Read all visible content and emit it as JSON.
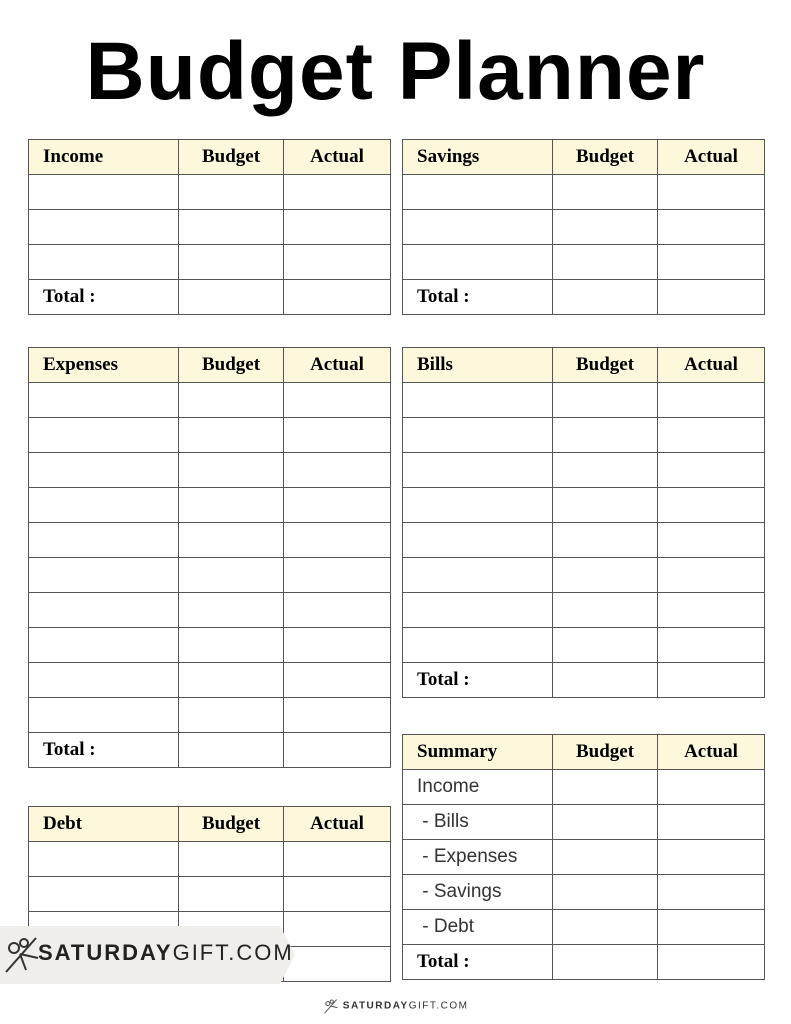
{
  "title": "Budget Planner",
  "colors": {
    "header_bg": "#fdf8dc",
    "border": "#555555"
  },
  "tables": [
    {
      "id": "income",
      "side": "left",
      "top": 139,
      "columns": [
        "Income",
        "Budget",
        "Actual"
      ],
      "rows": [
        "",
        "",
        ""
      ],
      "total": "Total :"
    },
    {
      "id": "savings",
      "side": "right",
      "top": 139,
      "columns": [
        "Savings",
        "Budget",
        "Actual"
      ],
      "rows": [
        "",
        "",
        ""
      ],
      "total": "Total :"
    },
    {
      "id": "expenses",
      "side": "left",
      "top": 347,
      "columns": [
        "Expenses",
        "Budget",
        "Actual"
      ],
      "rows": [
        "",
        "",
        "",
        "",
        "",
        "",
        "",
        "",
        "",
        ""
      ],
      "total": "Total :"
    },
    {
      "id": "bills",
      "side": "right",
      "top": 347,
      "columns": [
        "Bills",
        "Budget",
        "Actual"
      ],
      "rows": [
        "",
        "",
        "",
        "",
        "",
        "",
        "",
        ""
      ],
      "total": "Total :"
    },
    {
      "id": "summary",
      "side": "right",
      "top": 734,
      "columns": [
        "Summary",
        "Budget",
        "Actual"
      ],
      "rows": [
        "Income",
        " - Bills",
        " - Expenses",
        " - Savings",
        " - Debt"
      ],
      "total": "Total :"
    },
    {
      "id": "debt",
      "side": "left",
      "top": 806,
      "columns": [
        "Debt",
        "Budget",
        "Actual"
      ],
      "rows": [
        "",
        "",
        "",
        ""
      ],
      "total": null
    }
  ],
  "watermark": {
    "brand_bold": "SATURDAY",
    "brand_light": "GIFT.COM",
    "icon": "bow-scissors-icon"
  },
  "footer": {
    "brand_bold": "SATURDAY",
    "brand_light": "GIFT.COM",
    "icon": "bow-scissors-icon"
  }
}
